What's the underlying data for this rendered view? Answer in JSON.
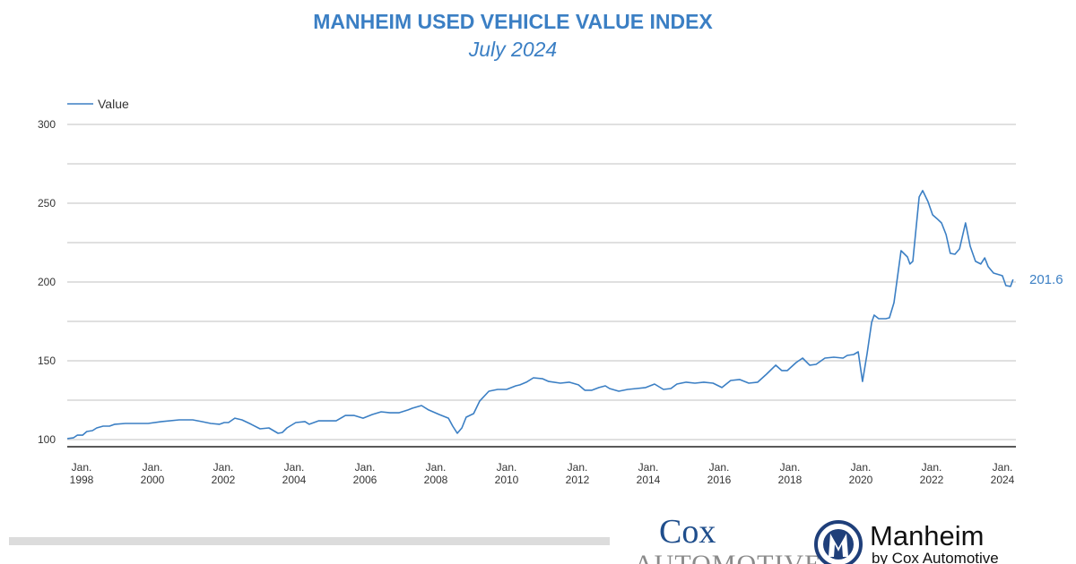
{
  "chart_data": {
    "type": "line",
    "title": "MANHEIM USED VEHICLE VALUE INDEX",
    "subtitle": "July 2024",
    "xlabel": "",
    "ylabel": "",
    "ylim": [
      100,
      300
    ],
    "xlim": [
      1997.8,
      2024.5
    ],
    "yticks": [
      100,
      150,
      200,
      250,
      300
    ],
    "gridlines": [
      100,
      125,
      150,
      175,
      200,
      225,
      250,
      275,
      300
    ],
    "xticks": [
      {
        "year": 1998,
        "line1": "Jan.",
        "line2": "1998"
      },
      {
        "year": 2000,
        "line1": "Jan.",
        "line2": "2000"
      },
      {
        "year": 2002,
        "line1": "Jan.",
        "line2": "2002"
      },
      {
        "year": 2004,
        "line1": "Jan.",
        "line2": "2004"
      },
      {
        "year": 2006,
        "line1": "Jan.",
        "line2": "2006"
      },
      {
        "year": 2008,
        "line1": "Jan.",
        "line2": "2008"
      },
      {
        "year": 2010,
        "line1": "Jan.",
        "line2": "2010"
      },
      {
        "year": 2012,
        "line1": "Jan.",
        "line2": "2012"
      },
      {
        "year": 2014,
        "line1": "Jan.",
        "line2": "2014"
      },
      {
        "year": 2016,
        "line1": "Jan.",
        "line2": "2016"
      },
      {
        "year": 2018,
        "line1": "Jan.",
        "line2": "2018"
      },
      {
        "year": 2020,
        "line1": "Jan.",
        "line2": "2020"
      },
      {
        "year": 2022,
        "line1": "Jan.",
        "line2": "2022"
      },
      {
        "year": 2024,
        "line1": "Jan.",
        "line2": "2024"
      }
    ],
    "legend": {
      "position": "top-left",
      "entries": [
        "Value"
      ]
    },
    "end_label": "201.6",
    "series": [
      {
        "name": "Value",
        "color": "#3b7fc4",
        "x": [
          1997.8,
          1997.97,
          1998.08,
          1998.23,
          1998.35,
          1998.51,
          1998.63,
          1998.81,
          1998.99,
          1999.14,
          1999.44,
          1999.82,
          2000.08,
          2000.46,
          2000.96,
          2001.34,
          2001.59,
          2001.85,
          2002.1,
          2002.23,
          2002.35,
          2002.53,
          2002.73,
          2002.99,
          2003.24,
          2003.49,
          2003.75,
          2003.87,
          2004.0,
          2004.25,
          2004.51,
          2004.63,
          2004.89,
          2005.14,
          2005.39,
          2005.65,
          2005.9,
          2006.15,
          2006.41,
          2006.66,
          2006.91,
          2007.16,
          2007.42,
          2007.54,
          2007.8,
          2008.0,
          2008.3,
          2008.56,
          2008.68,
          2008.81,
          2008.94,
          2009.06,
          2009.27,
          2009.44,
          2009.7,
          2009.95,
          2010.2,
          2010.46,
          2010.58,
          2010.76,
          2010.96,
          2011.22,
          2011.39,
          2011.72,
          2011.97,
          2012.23,
          2012.41,
          2012.61,
          2012.81,
          2012.99,
          2013.11,
          2013.37,
          2013.62,
          2013.87,
          2014.13,
          2014.38,
          2014.63,
          2014.84,
          2015.01,
          2015.27,
          2015.52,
          2015.77,
          2016.03,
          2016.28,
          2016.53,
          2016.78,
          2017.04,
          2017.29,
          2017.54,
          2017.8,
          2017.97,
          2018.13,
          2018.38,
          2018.56,
          2018.76,
          2018.94,
          2019.19,
          2019.44,
          2019.7,
          2019.82,
          2020.0,
          2020.13,
          2020.25,
          2020.38,
          2020.51,
          2020.58,
          2020.71,
          2020.91,
          2021.01,
          2021.14,
          2021.27,
          2021.34,
          2021.52,
          2021.59,
          2021.67,
          2021.85,
          2021.95,
          2022.1,
          2022.23,
          2022.35,
          2022.48,
          2022.61,
          2022.73,
          2022.86,
          2022.99,
          2023.16,
          2023.29,
          2023.44,
          2023.59,
          2023.7,
          2023.8,
          2023.95,
          2024.13,
          2024.2,
          2024.3,
          2024.43,
          2024.5
        ],
        "y": [
          100.6,
          101.1,
          102.8,
          102.8,
          105.1,
          105.7,
          107.4,
          108.5,
          108.5,
          109.7,
          110.2,
          110.2,
          110.2,
          111.4,
          112.5,
          112.5,
          111.4,
          110.2,
          109.7,
          110.8,
          110.8,
          113.6,
          112.5,
          109.7,
          106.8,
          107.4,
          104.0,
          104.5,
          107.4,
          110.8,
          111.4,
          109.7,
          111.9,
          111.9,
          111.9,
          115.3,
          115.3,
          113.6,
          115.9,
          117.6,
          117.0,
          117.0,
          118.8,
          119.9,
          121.6,
          118.8,
          115.9,
          113.6,
          108.5,
          104.0,
          107.4,
          114.2,
          116.5,
          124.4,
          130.7,
          131.8,
          131.8,
          134.1,
          134.7,
          136.4,
          139.2,
          138.6,
          136.9,
          135.8,
          136.4,
          134.7,
          131.3,
          131.3,
          133.0,
          134.1,
          132.4,
          130.7,
          131.8,
          132.4,
          133.0,
          135.2,
          131.8,
          132.4,
          135.2,
          136.4,
          135.8,
          136.4,
          135.8,
          133.0,
          137.5,
          138.1,
          135.8,
          136.4,
          141.5,
          147.2,
          143.8,
          143.8,
          148.9,
          151.7,
          147.2,
          147.7,
          151.7,
          152.3,
          151.7,
          153.4,
          154.0,
          155.7,
          136.9,
          154.5,
          174.4,
          179.0,
          176.7,
          176.7,
          177.3,
          186.9,
          208.5,
          219.9,
          215.9,
          211.4,
          213.1,
          254.0,
          258.0,
          251.1,
          242.6,
          240.3,
          237.5,
          230.1,
          218.2,
          217.6,
          221.0,
          237.5,
          222.7,
          213.1,
          211.4,
          215.3,
          209.7,
          205.7,
          204.5,
          204.0,
          197.7,
          197.2,
          201.6
        ]
      }
    ]
  },
  "footer": {
    "cox_logo": {
      "line1": "Cox",
      "line2": "AUTOMOTIVE"
    },
    "manheim_logo": {
      "name": "Manheim",
      "tagline": "by Cox Automotive"
    }
  }
}
